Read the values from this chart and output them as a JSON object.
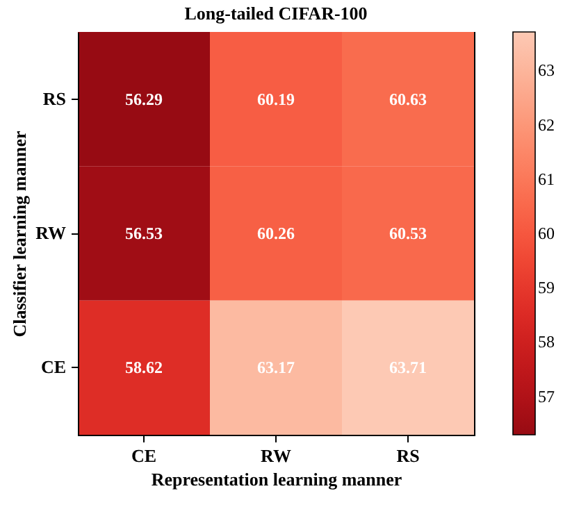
{
  "chart_data": {
    "type": "heatmap",
    "title": "Long-tailed CIFAR-100",
    "xlabel": "Representation learning manner",
    "ylabel": "Classifier learning manner",
    "categories": [
      "CE",
      "RW",
      "RS"
    ],
    "y_categories": [
      "RS",
      "RW",
      "CE"
    ],
    "cells": [
      [
        56.29,
        60.19,
        60.63
      ],
      [
        56.53,
        60.26,
        60.53
      ],
      [
        58.62,
        63.17,
        63.71
      ]
    ],
    "clim": [
      56.29,
      63.71
    ],
    "cticks": [
      57,
      58,
      59,
      60,
      61,
      62,
      63
    ],
    "data_labels": true
  }
}
